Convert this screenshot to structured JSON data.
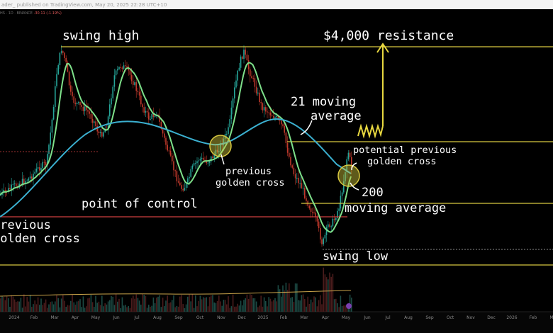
{
  "header": {
    "publisher_text": "ader_ published on TradingView.com, May 20, 2025 22:28 UTC+10",
    "ticker_text": "HS · 1D · BINANCE",
    "change_text": "-30.11 (-1.19%)"
  },
  "chart_data": {
    "type": "candlestick",
    "title": "",
    "xlabel": "",
    "ylabel": "",
    "x_tick_labels": [
      "2024",
      "Feb",
      "Mar",
      "Apr",
      "May",
      "Jun",
      "Jul",
      "Aug",
      "Sep",
      "Oct",
      "Nov",
      "Dec",
      "2025",
      "Feb",
      "Mar",
      "Apr",
      "May",
      "Jun",
      "Jul",
      "Aug",
      "Sep",
      "Oct",
      "Nov",
      "Dec",
      "2026",
      "Feb",
      "Mar"
    ],
    "price_path_note": "",
    "price_path": [
      [
        0,
        72
      ],
      [
        1,
        73
      ],
      [
        2,
        75
      ],
      [
        3,
        70
      ],
      [
        4,
        72
      ],
      [
        5,
        82
      ],
      [
        6,
        86
      ],
      [
        7,
        80
      ],
      [
        8,
        84
      ],
      [
        9,
        78
      ],
      [
        10,
        85
      ],
      [
        11,
        90
      ],
      [
        12,
        92
      ],
      [
        13,
        88
      ],
      [
        14,
        86
      ],
      [
        15,
        80
      ],
      [
        16,
        76
      ],
      [
        17,
        78
      ],
      [
        18,
        72
      ],
      [
        19,
        70
      ],
      [
        20,
        68
      ],
      [
        21,
        72
      ],
      [
        22,
        74
      ],
      [
        23,
        70
      ],
      [
        24,
        73
      ],
      [
        25,
        78
      ],
      [
        26,
        77
      ],
      [
        27,
        88
      ],
      [
        28,
        96
      ],
      [
        29,
        98
      ],
      [
        30,
        102
      ],
      [
        31,
        100
      ],
      [
        32,
        95
      ],
      [
        33,
        90
      ],
      [
        34,
        93
      ],
      [
        35,
        100
      ],
      [
        36,
        106
      ],
      [
        37,
        110
      ],
      [
        38,
        120
      ],
      [
        39,
        118
      ],
      [
        40,
        112
      ],
      [
        41,
        106
      ],
      [
        42,
        102
      ],
      [
        43,
        96
      ],
      [
        44,
        102
      ],
      [
        45,
        108
      ],
      [
        46,
        104
      ],
      [
        47,
        98
      ],
      [
        48,
        92
      ],
      [
        49,
        90
      ],
      [
        50,
        86
      ],
      [
        51,
        88
      ],
      [
        52,
        94
      ],
      [
        53,
        92
      ],
      [
        54,
        100
      ],
      [
        55,
        106
      ],
      [
        56,
        112
      ],
      [
        57,
        118
      ],
      [
        58,
        122
      ],
      [
        59,
        118
      ],
      [
        60,
        110
      ],
      [
        61,
        104
      ]
    ],
    "series": [
      {
        "name": "21 moving average",
        "color": "#7ee08a"
      },
      {
        "name": "200 moving average",
        "color": "#3bb0d0"
      }
    ],
    "levels": [
      {
        "label": "$4,000 resistance",
        "color": "#d8c840"
      },
      {
        "label": "swing high",
        "color": "#d8c840"
      },
      {
        "label": "point of control",
        "color": "#d04040"
      },
      {
        "label": "swing low",
        "color": "#d8c840"
      }
    ],
    "annotations": [
      {
        "text": "swing high"
      },
      {
        "text": "$4,000 resistance"
      },
      {
        "text": "21 moving"
      },
      {
        "text": "average"
      },
      {
        "text": "previous"
      },
      {
        "text": "golden cross"
      },
      {
        "text": "potential previous"
      },
      {
        "text": "golden cross"
      },
      {
        "text": "200"
      },
      {
        "text": "moving average"
      },
      {
        "text": "point of control"
      },
      {
        "text": "previous"
      },
      {
        "text": "golden cross"
      },
      {
        "text": "swing low"
      }
    ]
  }
}
